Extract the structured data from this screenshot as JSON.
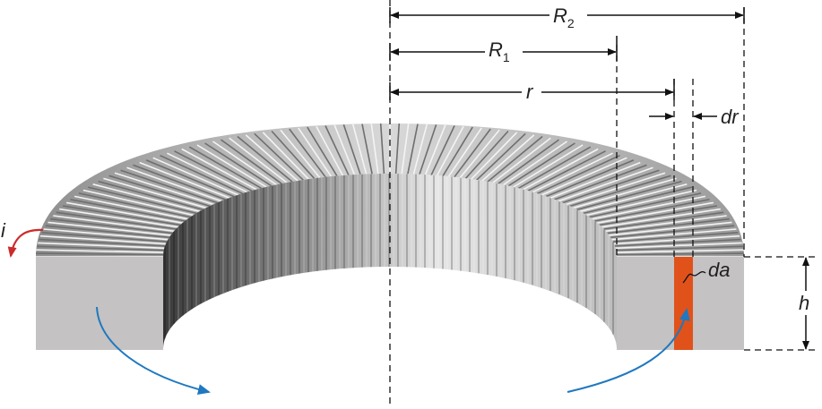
{
  "labels": {
    "R2": "R",
    "R2_sub": "2",
    "R1": "R",
    "R1_sub": "1",
    "r": "r",
    "dr": "dr",
    "da": "da",
    "h": "h",
    "i": "i"
  },
  "colors": {
    "slice": "#e0521a",
    "current_arrow": "#cc2b2b",
    "rotation_arrow": "#1f78c0",
    "face": "#c4c2c2",
    "line": "#111111"
  }
}
